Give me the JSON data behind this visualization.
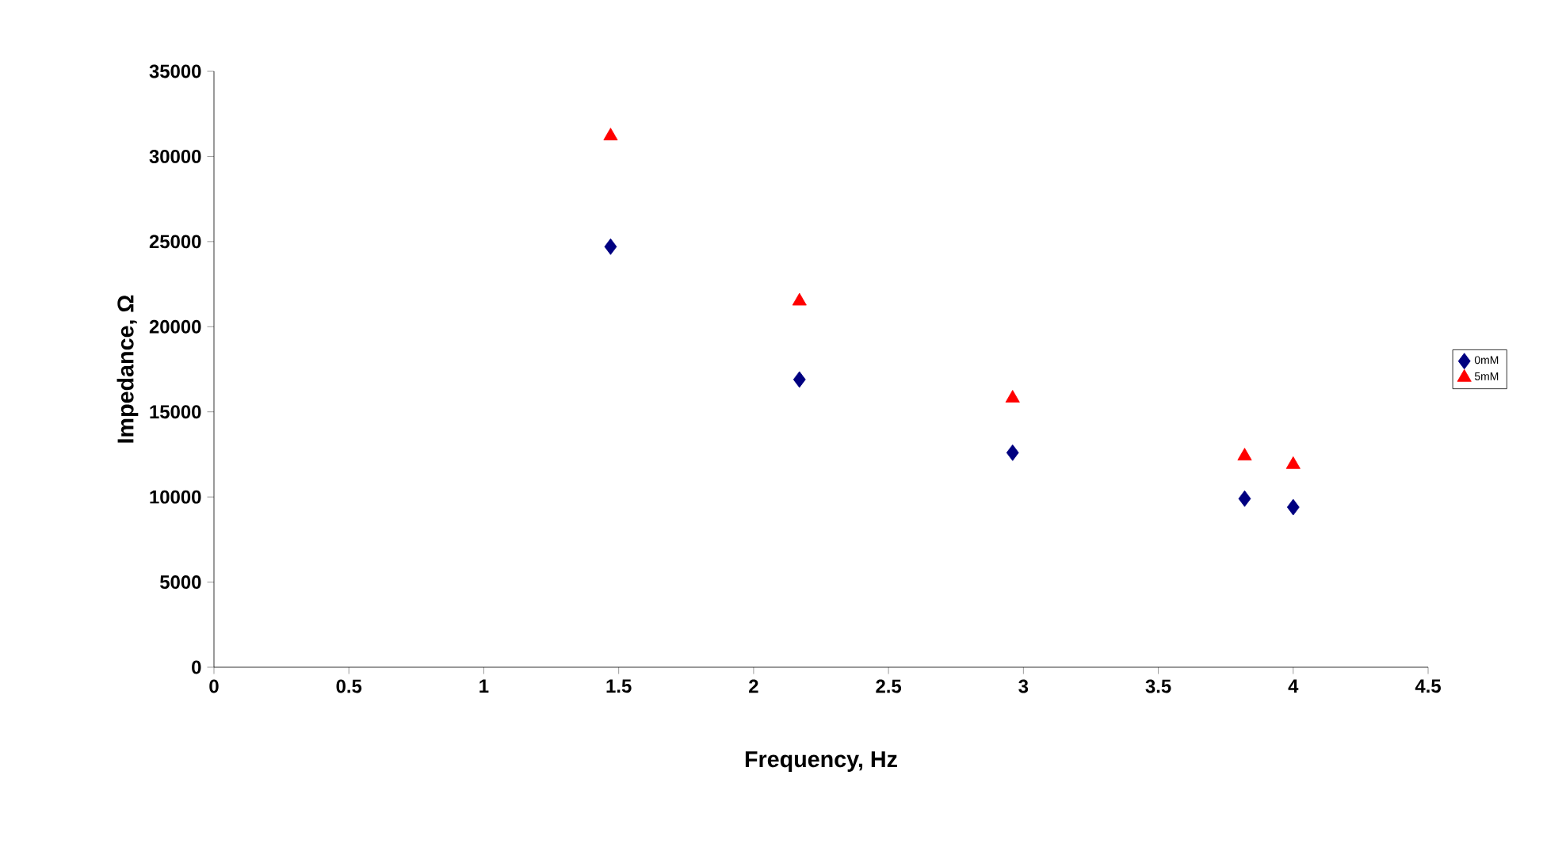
{
  "chart_data": {
    "type": "scatter",
    "xlabel": "Frequency, Hz",
    "ylabel": "Impedance, Ω",
    "xlim": [
      0,
      4.5
    ],
    "xticks": [
      0,
      0.5,
      1,
      1.5,
      2,
      2.5,
      3,
      3.5,
      4,
      4.5
    ],
    "ylim": [
      0,
      35000
    ],
    "yticks": [
      0,
      5000,
      10000,
      15000,
      20000,
      25000,
      30000,
      35000
    ],
    "grid": false,
    "legend": "right",
    "series": [
      {
        "name": "0mM",
        "color": "#000080",
        "marker": "diamond",
        "x": [
          1.47,
          2.17,
          2.96,
          3.82,
          4.0
        ],
        "values": [
          24700,
          16900,
          12600,
          9900,
          9400
        ]
      },
      {
        "name": "5mM",
        "color": "#ff0000",
        "marker": "triangle",
        "x": [
          1.47,
          2.17,
          2.96,
          3.82,
          4.0
        ],
        "values": [
          31200,
          21500,
          15800,
          12400,
          11900
        ]
      }
    ]
  }
}
